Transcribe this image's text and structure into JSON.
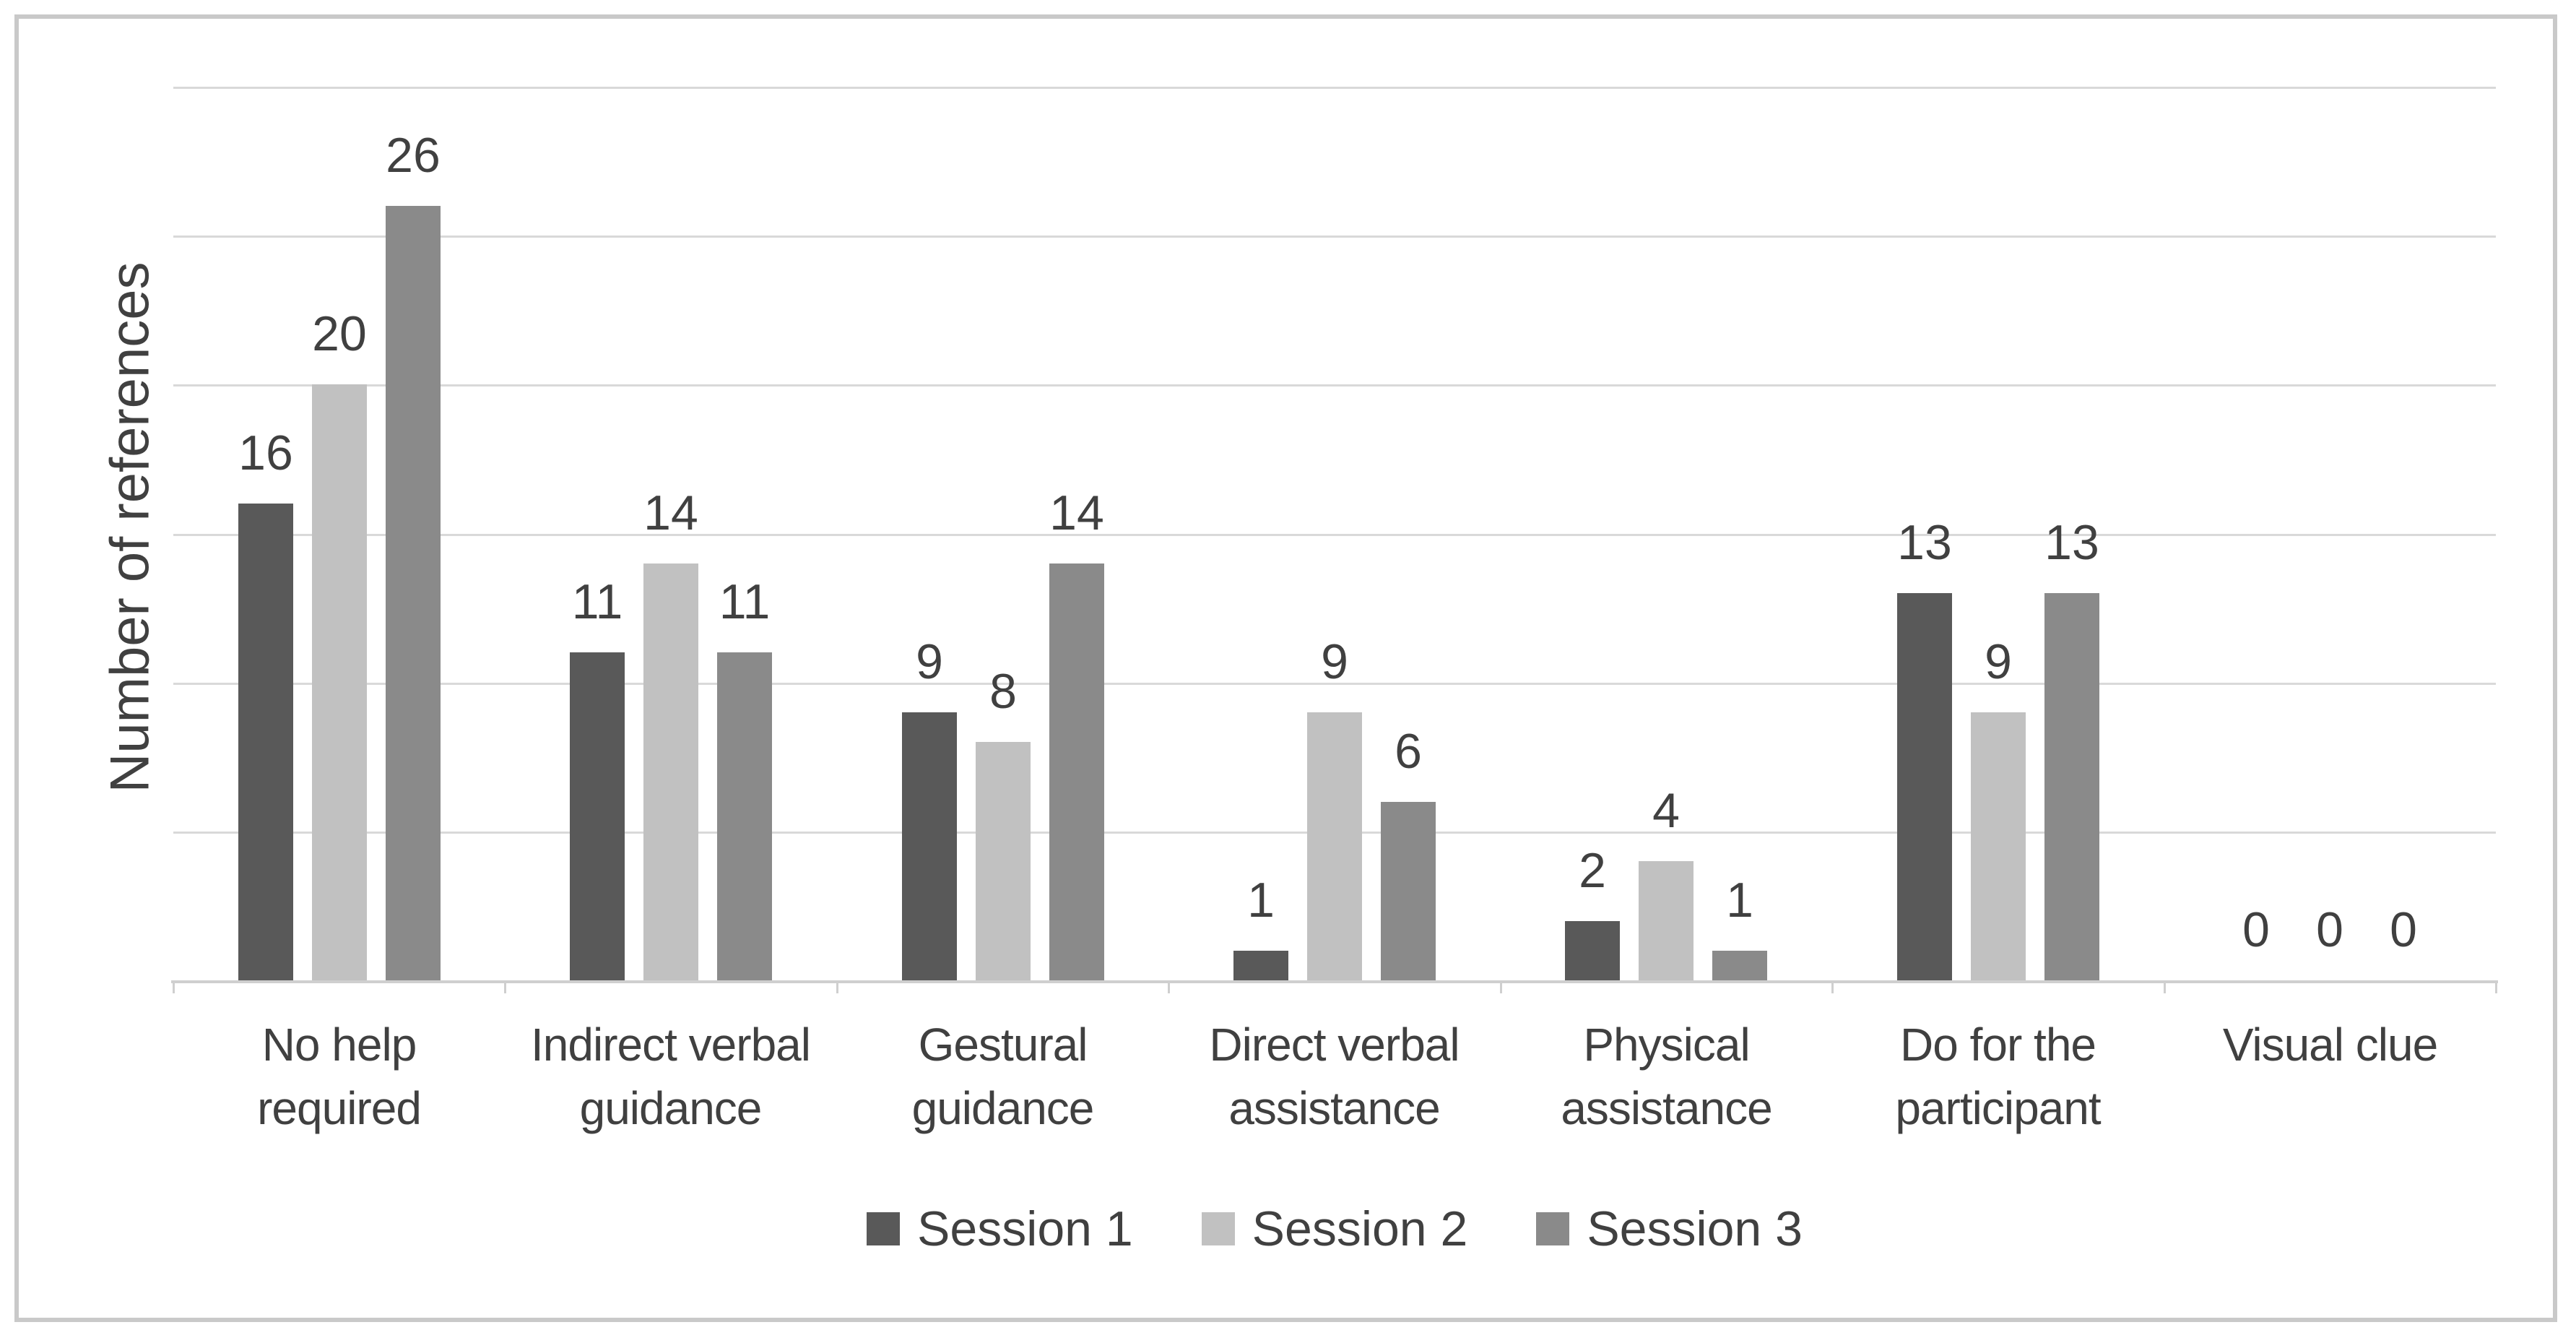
{
  "chart_data": {
    "type": "bar",
    "title": "",
    "xlabel": "",
    "ylabel": "Number of references",
    "categories": [
      "No help\nrequired",
      "Indirect verbal\nguidance",
      "Gestural\nguidance",
      "Direct verbal\nassistance",
      "Physical\nassistance",
      "Do for the\nparticipant",
      "Visual clue"
    ],
    "series": [
      {
        "name": "Session 1",
        "color": "#595959",
        "values": [
          16,
          11,
          9,
          1,
          2,
          13,
          0
        ]
      },
      {
        "name": "Session 2",
        "color": "#c1c1c1",
        "values": [
          20,
          14,
          8,
          9,
          4,
          9,
          0
        ]
      },
      {
        "name": "Session 3",
        "color": "#8a8a8a",
        "values": [
          26,
          11,
          14,
          6,
          1,
          13,
          0
        ]
      }
    ],
    "ylim": [
      0,
      30
    ],
    "grid_step": 5,
    "gridlines": true,
    "y_tick_labels_visible": false,
    "data_labels": true,
    "legend_position": "bottom",
    "colors": {
      "grid": "#d9d9d9",
      "axis": "#cfcfcf",
      "text": "#404040",
      "frame_border": "#c9c9c9",
      "background": "#ffffff"
    }
  }
}
